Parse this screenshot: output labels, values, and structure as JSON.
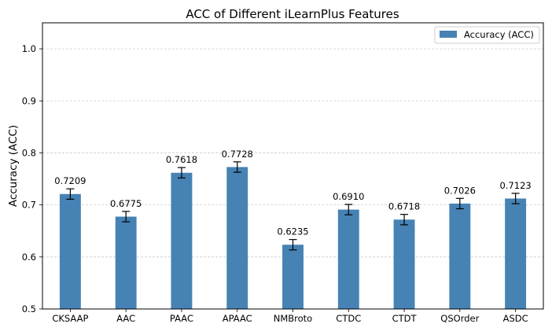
{
  "chart_data": {
    "type": "bar",
    "title": "ACC of Different iLearnPlus Features",
    "xlabel": "",
    "ylabel": "Accuracy (ACC)",
    "ylim": [
      0.5,
      1.05
    ],
    "yticks": [
      "0.5",
      "0.6",
      "0.7",
      "0.8",
      "0.9",
      "1.0"
    ],
    "ytick_values": [
      0.5,
      0.6,
      0.7,
      0.8,
      0.9,
      1.0
    ],
    "grid": "horizontal dashed",
    "categories": [
      "CKSAAP",
      "AAC",
      "PAAC",
      "APAAC",
      "NMBroto",
      "CTDC",
      "CTDT",
      "QSOrder",
      "ASDC"
    ],
    "series": [
      {
        "name": "Accuracy (ACC)",
        "color": "#4682b4",
        "values": [
          0.7209,
          0.6775,
          0.7618,
          0.7728,
          0.6235,
          0.691,
          0.6718,
          0.7026,
          0.7123
        ],
        "errors": [
          0.01,
          0.01,
          0.01,
          0.01,
          0.01,
          0.01,
          0.01,
          0.01,
          0.01
        ],
        "labels": [
          "0.7209",
          "0.6775",
          "0.7618",
          "0.7728",
          "0.6235",
          "0.6910",
          "0.6718",
          "0.7026",
          "0.7123"
        ]
      }
    ],
    "legend": {
      "position": "top-right",
      "label": "Accuracy (ACC)"
    }
  }
}
